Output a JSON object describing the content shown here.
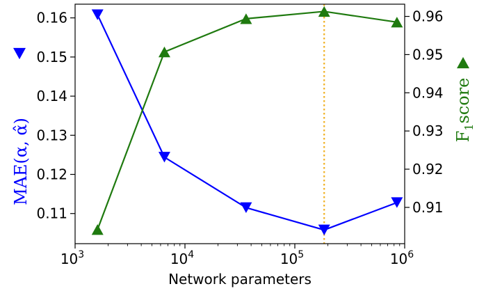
{
  "chart_data": {
    "type": "line",
    "xlabel": "Network parameters",
    "xscale": "log",
    "xlim": [
      1000,
      1000000
    ],
    "x_ticks": [
      {
        "value": 1000,
        "base": "10",
        "exp": "3"
      },
      {
        "value": 10000,
        "base": "10",
        "exp": "4"
      },
      {
        "value": 100000,
        "base": "10",
        "exp": "5"
      },
      {
        "value": 1000000,
        "base": "10",
        "exp": "6"
      }
    ],
    "left_axis": {
      "label": "MAE(α, α̂)",
      "color": "#0000ff",
      "ylim": [
        0.1023,
        0.1635
      ],
      "ticks": [
        0.11,
        0.12,
        0.13,
        0.14,
        0.15,
        0.16
      ],
      "tick_labels": [
        "0.11",
        "0.12",
        "0.13",
        "0.14",
        "0.15",
        "0.16"
      ],
      "marker": "triangle-down"
    },
    "right_axis": {
      "label": "F",
      "label_sub": "1",
      "label_rest": "score",
      "color": "#1f7a0f",
      "ylim": [
        0.9005,
        0.9632
      ],
      "ticks": [
        0.91,
        0.92,
        0.93,
        0.94,
        0.95,
        0.96
      ],
      "tick_labels": [
        "0.91",
        "0.92",
        "0.93",
        "0.94",
        "0.95",
        "0.96"
      ],
      "marker": "triangle-up"
    },
    "series": [
      {
        "axis": "left",
        "color": "#0000ff",
        "marker": "triangle-down",
        "x": [
          1600,
          6500,
          36000,
          185000,
          850000
        ],
        "y": [
          0.1608,
          0.1244,
          0.1115,
          0.1058,
          0.1128
        ]
      },
      {
        "axis": "right",
        "color": "#1f7a0f",
        "marker": "triangle-up",
        "x": [
          1600,
          6500,
          36000,
          185000,
          850000
        ],
        "y": [
          0.9042,
          0.9507,
          0.9594,
          0.9613,
          0.9585
        ]
      }
    ],
    "vline": {
      "x": 185000,
      "color": "#f0b020",
      "style": "dotted"
    }
  }
}
